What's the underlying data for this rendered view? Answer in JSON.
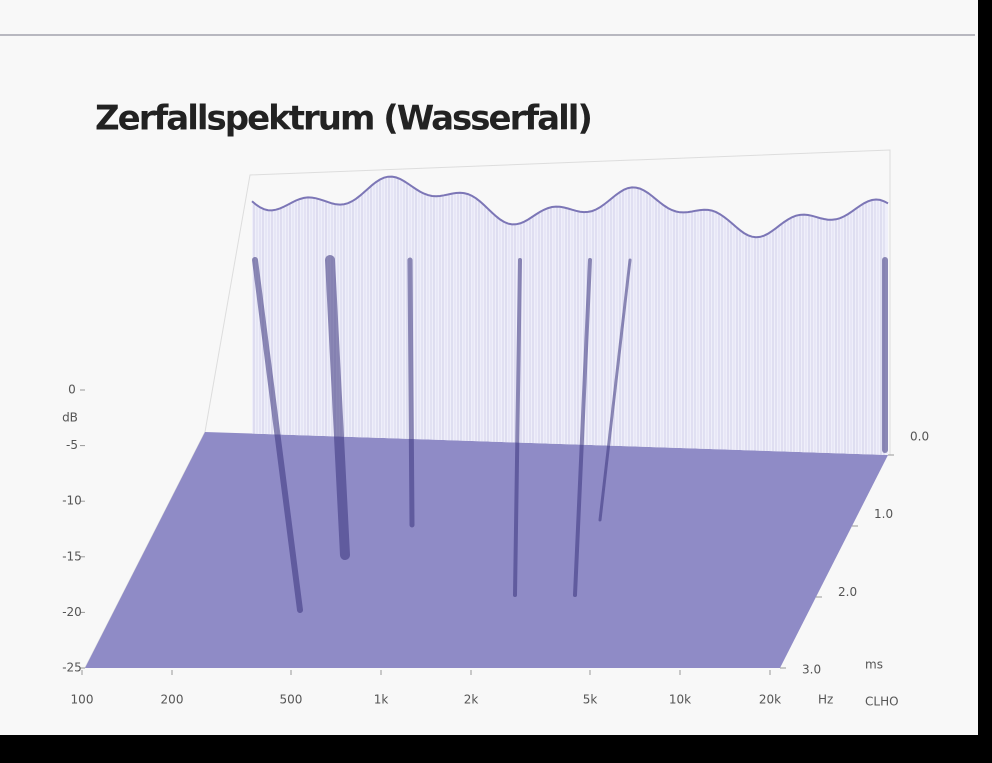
{
  "chart_data": {
    "type": "waterfall",
    "title": "Zerfallspektrum (Wasserfall)",
    "xlabel": "Hz",
    "xlim": [
      100,
      20000
    ],
    "log_x": true,
    "xticks": [
      100,
      200,
      500,
      {
        "value": 1000,
        "label": "1k"
      },
      {
        "value": 2000,
        "label": "2k"
      },
      {
        "value": 5000,
        "label": "5k"
      },
      {
        "value": 10000,
        "label": "10k"
      },
      {
        "value": 20000,
        "label": "20k"
      }
    ],
    "ylabel": "dB",
    "ylim": [
      -25,
      0
    ],
    "yticks": [
      0,
      -5,
      -10,
      -15,
      -20,
      -25
    ],
    "zlabel": "ms",
    "zlim": [
      0,
      3
    ],
    "zticks": [
      {
        "value": 0,
        "label": "0.0"
      },
      {
        "value": 1,
        "label": "1.0"
      },
      {
        "value": 2,
        "label": "2.0"
      },
      {
        "value": 3,
        "label": "3.0"
      }
    ],
    "color": "#8f8bc6",
    "credit": "CLHO"
  }
}
